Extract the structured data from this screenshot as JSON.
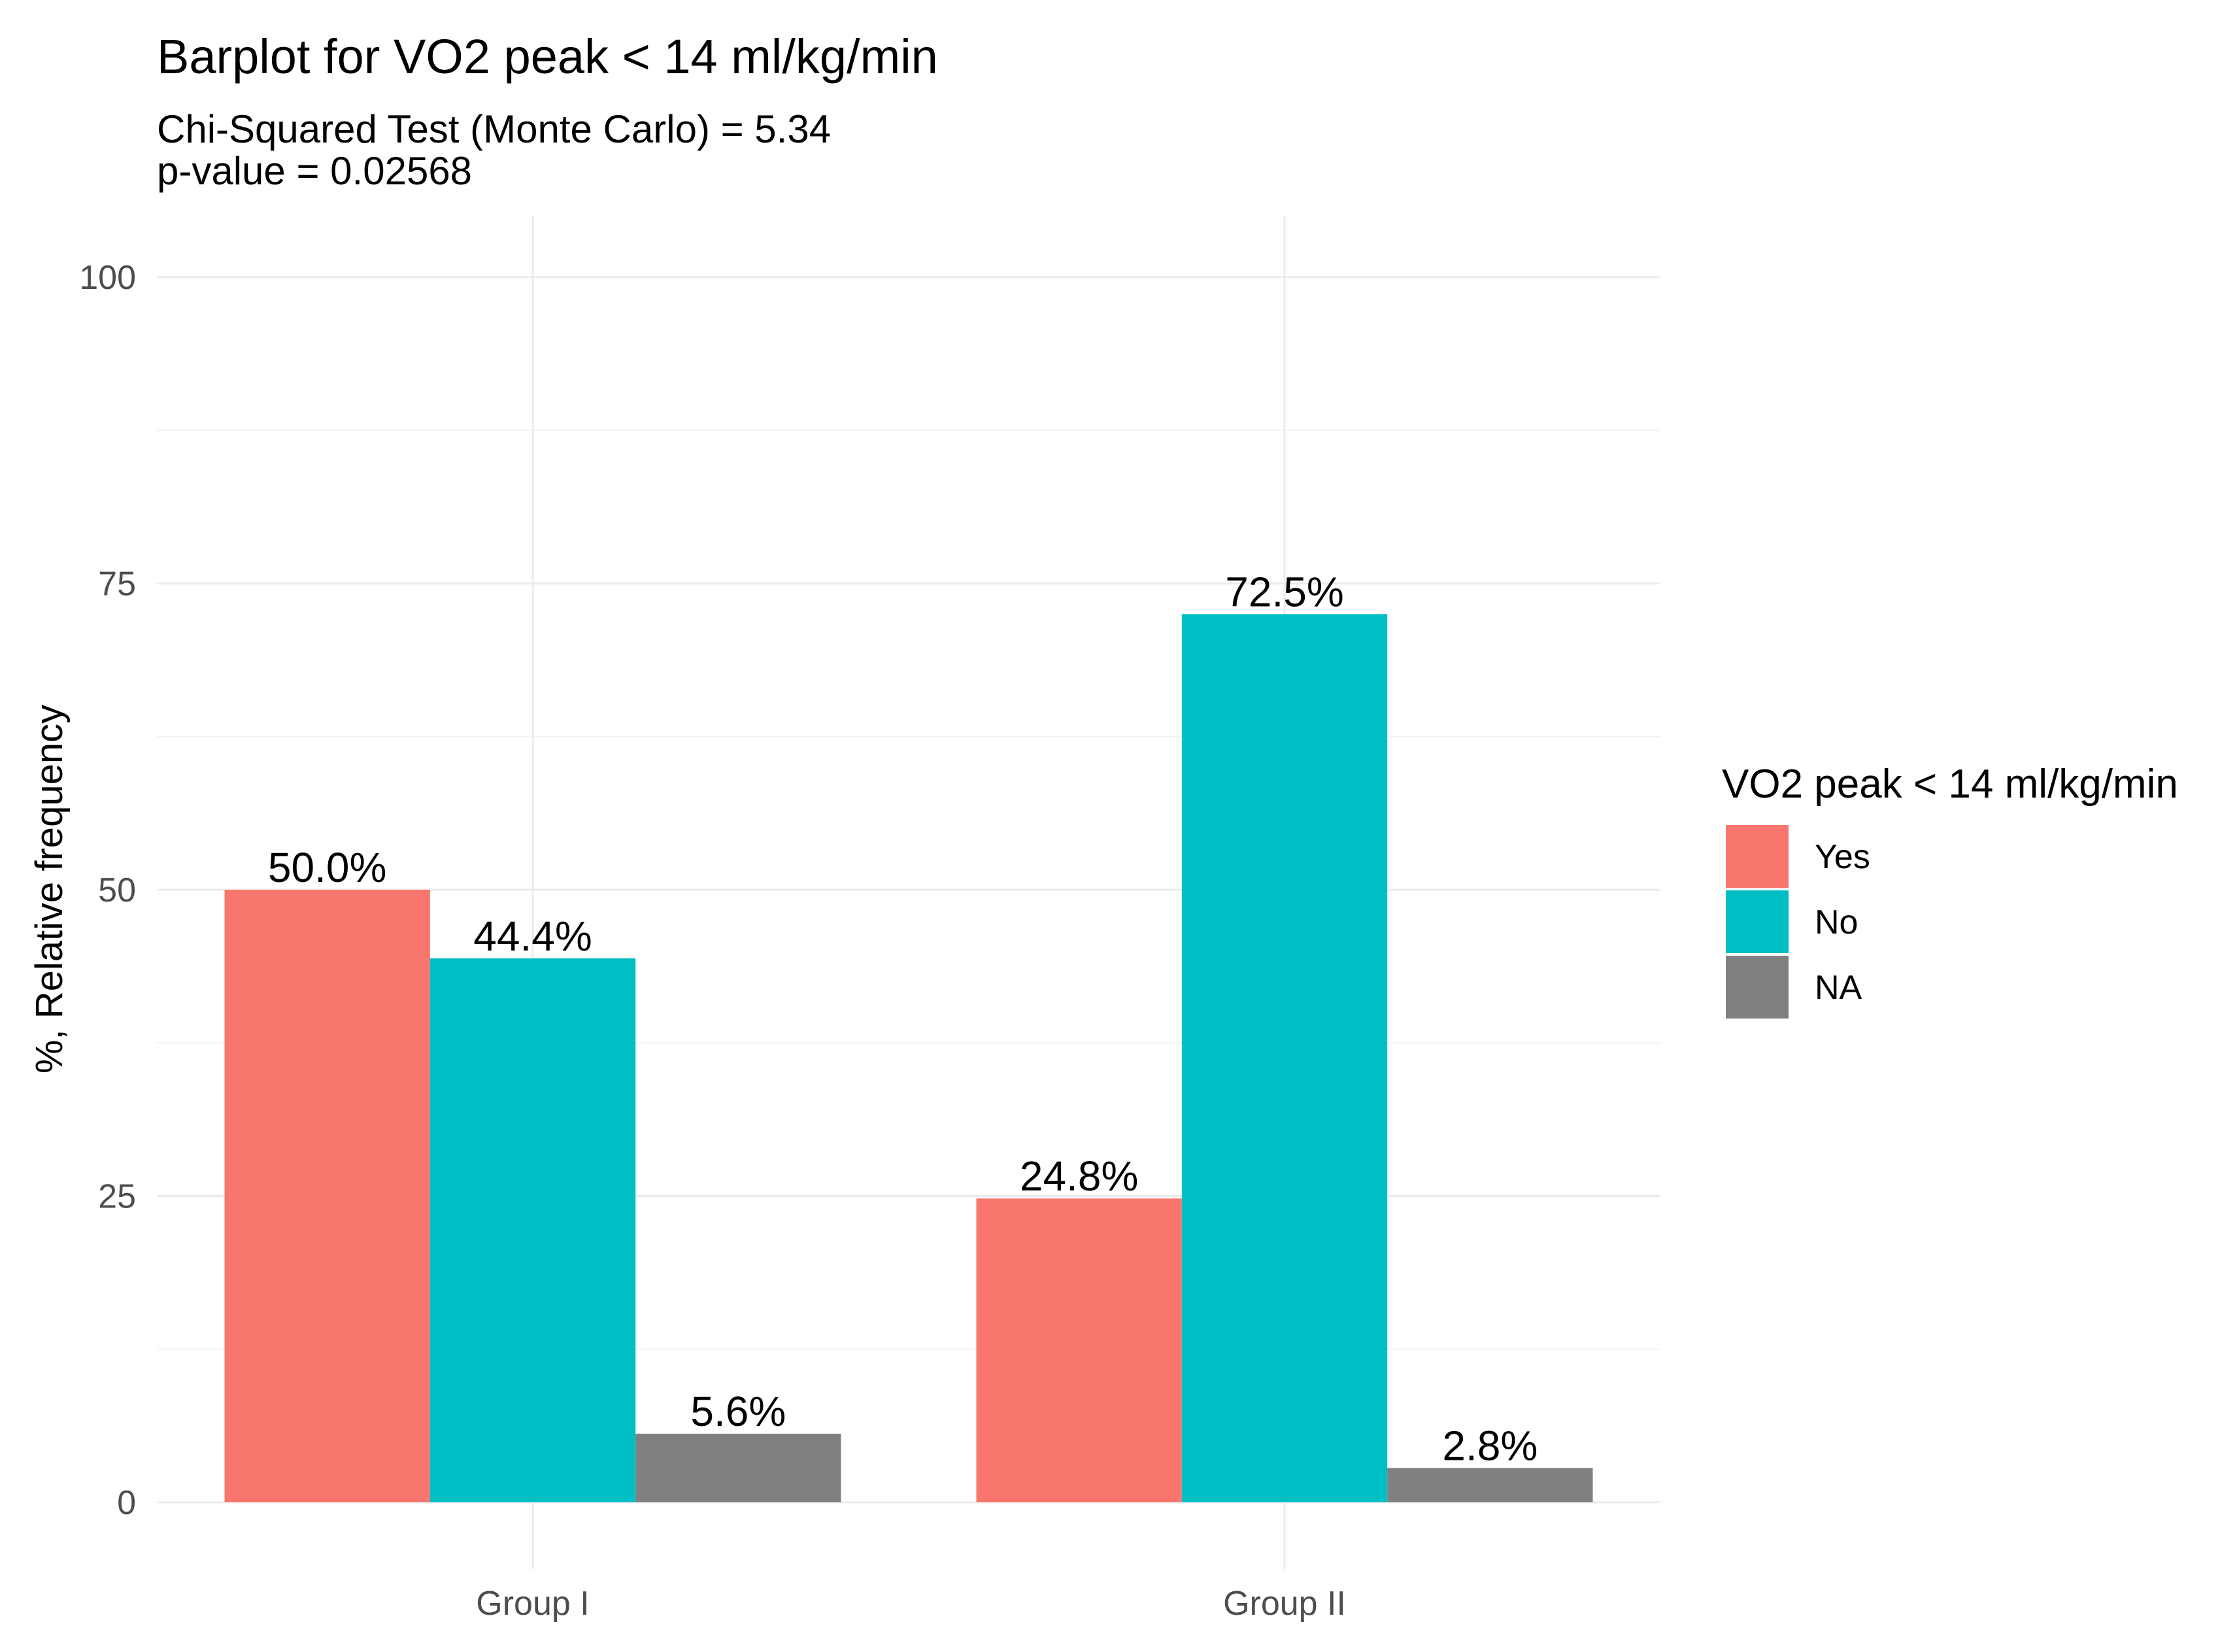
{
  "chart_data": {
    "type": "bar",
    "title": "Barplot for VO2 peak < 14 ml/kg/min",
    "subtitle_lines": [
      "Chi-Squared Test (Monte Carlo) = 5.34",
      "p-value = 0.02568"
    ],
    "xlabel": "",
    "ylabel": "%, Relative frequency",
    "ylim": [
      0,
      100
    ],
    "yticks": [
      0,
      25,
      50,
      75,
      100
    ],
    "categories": [
      "Group I",
      "Group II"
    ],
    "legend_title": "VO2 peak < 14 ml/kg/min",
    "legend_position": "right",
    "grid": true,
    "series": [
      {
        "name": "Yes",
        "color": "#F8766D",
        "values": [
          50.0,
          24.8
        ],
        "labels": [
          "50.0%",
          "24.8%"
        ]
      },
      {
        "name": "No",
        "color": "#00BFC4",
        "values": [
          44.4,
          72.5
        ],
        "labels": [
          "44.4%",
          "72.5%"
        ]
      },
      {
        "name": "NA",
        "color": "#808080",
        "values": [
          5.6,
          2.8
        ],
        "labels": [
          "5.6%",
          "2.8%"
        ]
      }
    ]
  }
}
